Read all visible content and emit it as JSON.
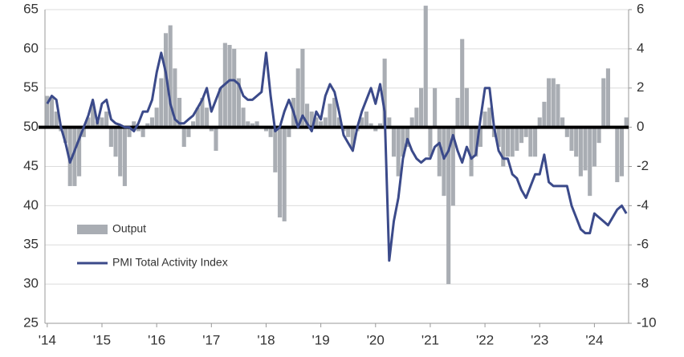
{
  "chart_data": {
    "type": "bar+line",
    "categories": [
      "'14",
      null,
      null,
      null,
      null,
      null,
      null,
      null,
      null,
      null,
      null,
      null,
      "'15",
      null,
      null,
      null,
      null,
      null,
      null,
      null,
      null,
      null,
      null,
      null,
      "'16",
      null,
      null,
      null,
      null,
      null,
      null,
      null,
      null,
      null,
      null,
      null,
      "'17",
      null,
      null,
      null,
      null,
      null,
      null,
      null,
      null,
      null,
      null,
      null,
      "'18",
      null,
      null,
      null,
      null,
      null,
      null,
      null,
      null,
      null,
      null,
      null,
      "'19",
      null,
      null,
      null,
      null,
      null,
      null,
      null,
      null,
      null,
      null,
      null,
      "'20",
      null,
      null,
      null,
      null,
      null,
      null,
      null,
      null,
      null,
      null,
      null,
      "'21",
      null,
      null,
      null,
      null,
      null,
      null,
      null,
      null,
      null,
      null,
      null,
      "'22",
      null,
      null,
      null,
      null,
      null,
      null,
      null,
      null,
      null,
      null,
      null,
      "'23",
      null,
      null,
      null,
      null,
      null,
      null,
      null,
      null,
      null,
      null,
      null,
      "'24",
      null,
      null,
      null,
      null,
      null,
      null,
      null
    ],
    "series": [
      {
        "name": "Output",
        "type": "bar",
        "axis": "y2",
        "color": "#a9adb3",
        "values": [
          1.6,
          1.5,
          0.8,
          -0.2,
          -0.8,
          -3,
          -3,
          -2.5,
          -0.5,
          0.5,
          1.2,
          0.3,
          0.5,
          0.8,
          -1,
          -1.5,
          -2.5,
          -3,
          -0.5,
          0.3,
          -0.2,
          -0.5,
          0.2,
          0.5,
          1,
          2.5,
          4.8,
          5.2,
          3,
          1.5,
          -1,
          -0.5,
          0.3,
          1,
          1.5,
          1,
          -0.2,
          -1.2,
          2,
          4.3,
          4.2,
          4,
          2.5,
          1,
          0.3,
          0.2,
          0.3,
          0,
          -0.2,
          -0.5,
          -2.3,
          -4.6,
          -4.8,
          -0.5,
          1.5,
          3,
          4,
          1.2,
          0.8,
          0.5,
          0.3,
          0.5,
          1.2,
          1.5,
          0.5,
          -0.2,
          -0.5,
          -1,
          -0.2,
          0.5,
          0.8,
          0.2,
          -0.2,
          0.2,
          3.5,
          0.5,
          -1.5,
          -2.5,
          -1.5,
          -1,
          0.5,
          1,
          2,
          6.2,
          -1.5,
          2,
          -2.5,
          -3.5,
          -8,
          -4,
          1.5,
          4.5,
          2,
          -2.5,
          -1.5,
          -1,
          0.8,
          1,
          -0.5,
          -1,
          -2,
          -1.5,
          -1.5,
          -1.2,
          -0.8,
          -0.5,
          -1.5,
          -1.5,
          0.5,
          1.3,
          2.5,
          2.5,
          2.2,
          0.5,
          -0.5,
          -1.2,
          -1.5,
          -2.5,
          -2.2,
          -3.5,
          -2,
          -0.8,
          2.5,
          3,
          0,
          -2.8,
          -2.5,
          0.5
        ]
      },
      {
        "name": "PMI Total Activity Index",
        "type": "line",
        "axis": "y",
        "color": "#3b4a8a",
        "values": [
          53,
          54,
          53.5,
          50,
          48,
          45.5,
          47,
          48.5,
          50,
          51.5,
          53.5,
          50.5,
          53,
          53.5,
          51,
          50.5,
          50.3,
          50,
          50,
          49.5,
          50.5,
          52,
          52,
          53.5,
          57,
          59.5,
          57,
          53,
          51,
          50.5,
          50.5,
          51,
          51.5,
          52.5,
          53.5,
          55,
          52,
          53.5,
          55,
          55.5,
          56,
          56,
          55.5,
          54,
          53.5,
          53.5,
          54,
          54.5,
          59.5,
          54,
          49.5,
          50,
          52,
          53.5,
          52,
          50,
          51.5,
          50.5,
          49.5,
          52,
          51,
          54,
          55.5,
          54.5,
          52,
          49,
          48,
          47,
          50,
          52,
          53.5,
          55,
          53,
          55.5,
          52,
          33,
          38,
          41,
          46,
          48.5,
          47,
          46,
          45.5,
          46,
          46,
          47.5,
          48,
          46,
          47,
          49,
          47,
          45.5,
          47.5,
          46,
          46.5,
          51,
          55,
          55,
          50,
          47,
          46,
          46,
          44,
          43.5,
          42,
          41,
          42.5,
          44,
          44,
          46.5,
          43,
          42.5,
          42.5,
          42.5,
          42.5,
          40,
          38.5,
          37,
          36.5,
          36.5,
          39,
          38.5,
          38,
          37.5,
          38.5,
          39.5,
          40,
          39
        ]
      }
    ],
    "ylim": [
      25,
      65
    ],
    "yticks": [
      65,
      60,
      55,
      50,
      45,
      40,
      35,
      30,
      25
    ],
    "y2lim": [
      -10,
      6
    ],
    "y2ticks": [
      6,
      4,
      2,
      0,
      -2,
      -4,
      -6,
      -8,
      -10
    ],
    "grid": true,
    "legend": "lower left"
  }
}
